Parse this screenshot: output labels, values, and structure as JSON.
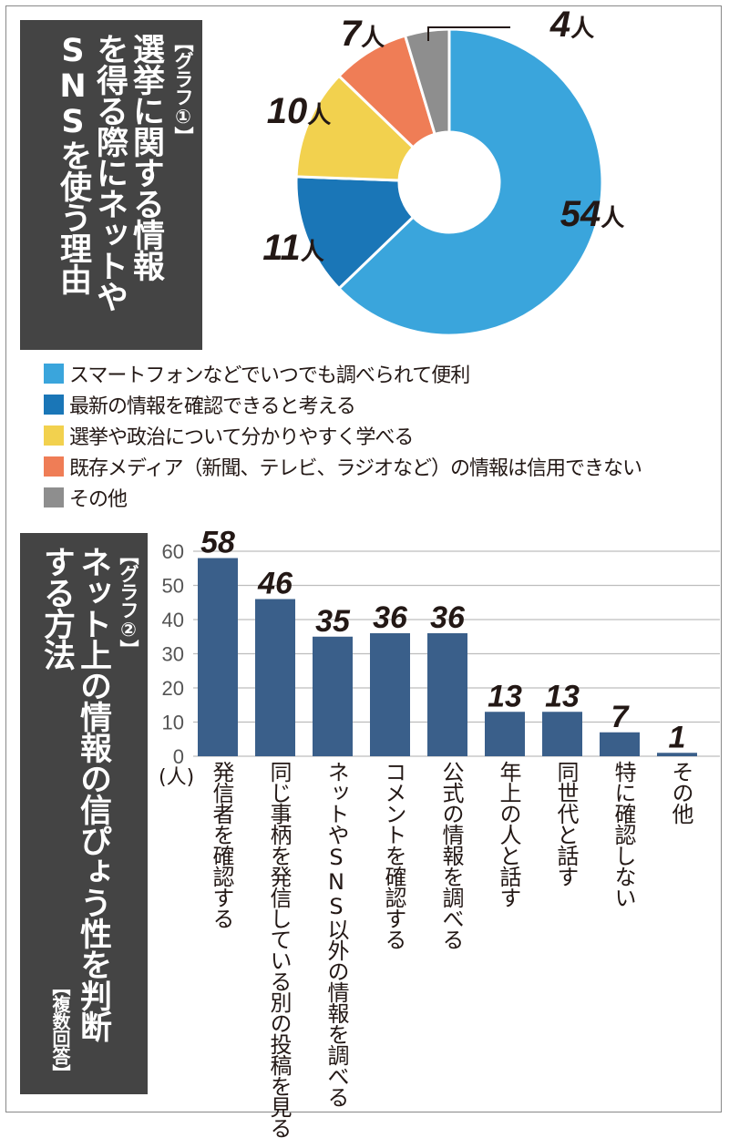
{
  "graph1": {
    "tag": "【グラフ①】",
    "title_lines": [
      "選挙に関する情報",
      "を得る際にネットや",
      "SNSを使う理由"
    ],
    "chart_data": {
      "type": "pie",
      "donut": true,
      "slices": [
        {
          "label": "スマートフォンなどでいつでも調べられて便利",
          "value": 54,
          "value_label": "54人",
          "color": "#3aa5dc"
        },
        {
          "label": "最新の情報を確認できると考える",
          "value": 11,
          "value_label": "11人",
          "color": "#1a76b7"
        },
        {
          "label": "選挙や政治について分かりやすく学べる",
          "value": 10,
          "value_label": "10人",
          "color": "#f2d14e"
        },
        {
          "label": "既存メディア（新聞、テレビ、ラジオなど）の情報は信用できない",
          "value": 7,
          "value_label": "7人",
          "color": "#ef7d56"
        },
        {
          "label": "その他",
          "value": 4,
          "value_label": "4人",
          "color": "#8e8e8e"
        }
      ]
    }
  },
  "graph2": {
    "tag": "【グラフ②】",
    "title_lines": [
      "ネット上の情報の信ぴょう性を判断",
      "する方法"
    ],
    "note": "【複数回答】",
    "chart_data": {
      "type": "bar",
      "unit": "(人)",
      "ylim": [
        0,
        60
      ],
      "yticks": [
        0,
        10,
        20,
        30,
        40,
        50,
        60
      ],
      "bar_color": "#3a5f8a",
      "categories": [
        "発信者を確認する",
        "同じ事柄を発信している別の投稿を見る",
        "ネットやSNS以外の情報を調べる",
        "コメントを確認する",
        "公式の情報を調べる",
        "年上の人と話す",
        "同世代と話す",
        "特に確認しない",
        "その他"
      ],
      "values": [
        58,
        46,
        35,
        36,
        36,
        13,
        13,
        7,
        1
      ]
    }
  }
}
